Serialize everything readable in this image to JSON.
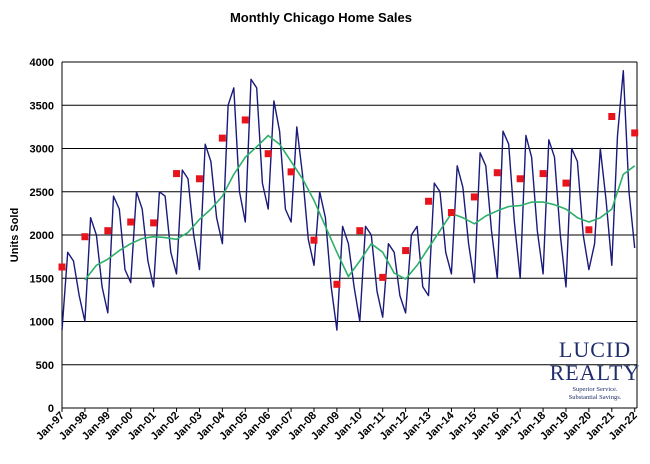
{
  "chart_data": {
    "type": "line",
    "title": "Monthly Chicago Home Sales",
    "ylabel": "Units Sold",
    "xlabel": "",
    "ylim": [
      0,
      4000
    ],
    "yticks": [
      0,
      500,
      1000,
      1500,
      2000,
      2500,
      3000,
      3500,
      4000
    ],
    "x_tick_labels": [
      "Jan-97",
      "Jan-98",
      "Jan-99",
      "Jan-00",
      "Jan-01",
      "Jan-02",
      "Jan-03",
      "Jan-04",
      "Jan-05",
      "Jan-06",
      "Jan-07",
      "Jan-08",
      "Jan-09",
      "Jan-10",
      "Jan-11",
      "Jan-12",
      "Jan-13",
      "Jan-14",
      "Jan-15",
      "Jan-16",
      "Jan-17",
      "Jan-18",
      "Jan-19",
      "Jan-20",
      "Jan-21",
      "Jan-22"
    ],
    "grid": true,
    "legend": "none",
    "colors": {
      "monthly": "#1a1a7a",
      "moving_average": "#2db06a",
      "markers": "#e8141b"
    },
    "series": [
      {
        "kind": "monthly",
        "x": [
          "1997-01",
          "1997-04",
          "1997-07",
          "1997-10",
          "1998-01",
          "1998-04",
          "1998-07",
          "1998-10",
          "1999-01",
          "1999-04",
          "1999-07",
          "1999-10",
          "2000-01",
          "2000-04",
          "2000-07",
          "2000-10",
          "2001-01",
          "2001-04",
          "2001-07",
          "2001-10",
          "2002-01",
          "2002-04",
          "2002-07",
          "2002-10",
          "2003-01",
          "2003-04",
          "2003-07",
          "2003-10",
          "2004-01",
          "2004-04",
          "2004-07",
          "2004-10",
          "2005-01",
          "2005-04",
          "2005-07",
          "2005-10",
          "2006-01",
          "2006-04",
          "2006-07",
          "2006-10",
          "2007-01",
          "2007-04",
          "2007-07",
          "2007-10",
          "2008-01",
          "2008-04",
          "2008-07",
          "2008-10",
          "2009-01",
          "2009-04",
          "2009-07",
          "2009-10",
          "2010-01",
          "2010-04",
          "2010-07",
          "2010-10",
          "2011-01",
          "2011-04",
          "2011-07",
          "2011-10",
          "2012-01",
          "2012-04",
          "2012-07",
          "2012-10",
          "2013-01",
          "2013-04",
          "2013-07",
          "2013-10",
          "2014-01",
          "2014-04",
          "2014-07",
          "2014-10",
          "2015-01",
          "2015-04",
          "2015-07",
          "2015-10",
          "2016-01",
          "2016-04",
          "2016-07",
          "2016-10",
          "2017-01",
          "2017-04",
          "2017-07",
          "2017-10",
          "2018-01",
          "2018-04",
          "2018-07",
          "2018-10",
          "2019-01",
          "2019-04",
          "2019-07",
          "2019-10",
          "2020-01",
          "2020-04",
          "2020-07",
          "2020-10",
          "2021-01",
          "2021-04",
          "2021-07",
          "2021-10",
          "2022-01"
        ],
        "values": [
          900,
          1800,
          1700,
          1300,
          1000,
          2200,
          2000,
          1400,
          1100,
          2450,
          2300,
          1600,
          1450,
          2500,
          2300,
          1700,
          1400,
          2500,
          2450,
          1800,
          1550,
          2750,
          2650,
          2000,
          1600,
          3050,
          2850,
          2200,
          1900,
          3500,
          3700,
          2500,
          2150,
          3800,
          3700,
          2600,
          2300,
          3550,
          3200,
          2300,
          2150,
          3250,
          2700,
          1950,
          1650,
          2500,
          2200,
          1400,
          900,
          2100,
          1900,
          1400,
          1000,
          2100,
          2000,
          1350,
          1050,
          1900,
          1800,
          1300,
          1100,
          2000,
          2100,
          1400,
          1300,
          2600,
          2500,
          1800,
          1550,
          2800,
          2550,
          1900,
          1450,
          2950,
          2800,
          2050,
          1500,
          3200,
          3050,
          2150,
          1500,
          3150,
          2900,
          2050,
          1550,
          3100,
          2900,
          2000,
          1400,
          3000,
          2850,
          2000,
          1600,
          1900,
          3000,
          2400,
          1650,
          3150,
          3900,
          2500,
          1850
        ]
      },
      {
        "kind": "moving_average",
        "x": [
          "1998-01",
          "1998-07",
          "1999-01",
          "1999-07",
          "2000-01",
          "2000-07",
          "2001-01",
          "2001-07",
          "2002-01",
          "2002-07",
          "2003-01",
          "2003-07",
          "2004-01",
          "2004-07",
          "2005-01",
          "2005-07",
          "2006-01",
          "2006-07",
          "2007-01",
          "2007-07",
          "2008-01",
          "2008-07",
          "2009-01",
          "2009-07",
          "2010-01",
          "2010-07",
          "2011-01",
          "2011-07",
          "2012-01",
          "2012-07",
          "2013-01",
          "2013-07",
          "2014-01",
          "2014-07",
          "2015-01",
          "2015-07",
          "2016-01",
          "2016-07",
          "2017-01",
          "2017-07",
          "2018-01",
          "2018-07",
          "2019-01",
          "2019-07",
          "2020-01",
          "2020-07",
          "2021-01",
          "2021-07",
          "2022-01"
        ],
        "values": [
          1480,
          1650,
          1720,
          1820,
          1900,
          1960,
          1980,
          1970,
          1950,
          2030,
          2180,
          2300,
          2450,
          2700,
          2900,
          3020,
          3150,
          3050,
          2850,
          2650,
          2400,
          2100,
          1800,
          1520,
          1700,
          1900,
          1800,
          1560,
          1490,
          1650,
          1850,
          2050,
          2250,
          2200,
          2130,
          2220,
          2280,
          2330,
          2340,
          2380,
          2380,
          2350,
          2300,
          2200,
          2150,
          2200,
          2300,
          2700,
          2800
        ]
      }
    ],
    "annual_markers": {
      "x": [
        "1997-01",
        "1998-01",
        "1999-01",
        "2000-01",
        "2001-01",
        "2002-01",
        "2003-01",
        "2004-01",
        "2005-01",
        "2006-01",
        "2007-01",
        "2008-01",
        "2009-01",
        "2010-01",
        "2011-01",
        "2012-01",
        "2013-01",
        "2014-01",
        "2015-01",
        "2016-01",
        "2017-01",
        "2018-01",
        "2019-01",
        "2020-01",
        "2021-01",
        "2022-01"
      ],
      "values": [
        1630,
        1980,
        2050,
        2150,
        2140,
        2710,
        2650,
        3120,
        3330,
        2940,
        2730,
        1940,
        1430,
        2050,
        1510,
        1820,
        2390,
        2260,
        2440,
        2720,
        2650,
        2710,
        2600,
        2060,
        3370,
        3180
      ]
    }
  },
  "logo": {
    "line1": "LUCID",
    "line2": "REALTY",
    "tagline1": "Superior Service.",
    "tagline2": "Substantial Savings."
  }
}
